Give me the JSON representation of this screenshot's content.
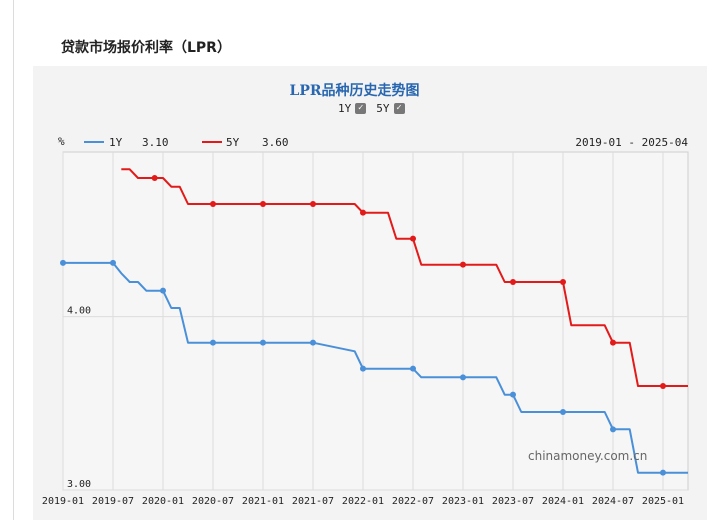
{
  "page": {
    "title": "贷款市场报价利率（LPR）",
    "watermark": "chinamoney.com.cn"
  },
  "toggles": [
    {
      "label": "1Y",
      "checked": true
    },
    {
      "label": "5Y",
      "checked": true
    }
  ],
  "chart_data": {
    "type": "line",
    "title": "LPR品种历史走势图",
    "unit_label": "%",
    "date_range_label": "2019-01 - 2025-04",
    "x_tick_labels": [
      "2019-01",
      "2019-07",
      "2020-01",
      "2020-07",
      "2021-01",
      "2021-07",
      "2022-01",
      "2022-07",
      "2023-01",
      "2023-07",
      "2024-01",
      "2024-07",
      "2025-01"
    ],
    "y_tick_labels": [
      "3.00",
      "4.00"
    ],
    "ylim": [
      3.0,
      4.95
    ],
    "xlim": [
      "2019-01",
      "2025-04"
    ],
    "grid": true,
    "legend_position": "top-left",
    "series": [
      {
        "name": "1Y",
        "legend_value": "3.10",
        "color": "#4a90d9",
        "points": [
          [
            "2019-01",
            4.31
          ],
          [
            "2019-07",
            4.31
          ],
          [
            "2019-08",
            4.25
          ],
          [
            "2019-09",
            4.2
          ],
          [
            "2019-10",
            4.2
          ],
          [
            "2019-11",
            4.15
          ],
          [
            "2019-12",
            4.15
          ],
          [
            "2020-01",
            4.15
          ],
          [
            "2020-02",
            4.05
          ],
          [
            "2020-03",
            4.05
          ],
          [
            "2020-04",
            3.85
          ],
          [
            "2020-07",
            3.85
          ],
          [
            "2021-01",
            3.85
          ],
          [
            "2021-07",
            3.85
          ],
          [
            "2021-12",
            3.8
          ],
          [
            "2022-01",
            3.7
          ],
          [
            "2022-07",
            3.7
          ],
          [
            "2022-08",
            3.65
          ],
          [
            "2023-01",
            3.65
          ],
          [
            "2023-05",
            3.65
          ],
          [
            "2023-06",
            3.55
          ],
          [
            "2023-07",
            3.55
          ],
          [
            "2023-08",
            3.45
          ],
          [
            "2024-01",
            3.45
          ],
          [
            "2024-06",
            3.45
          ],
          [
            "2024-07",
            3.35
          ],
          [
            "2024-08",
            3.35
          ],
          [
            "2024-09",
            3.35
          ],
          [
            "2024-10",
            3.1
          ],
          [
            "2025-01",
            3.1
          ],
          [
            "2025-04",
            3.1
          ]
        ],
        "markers": [
          "2019-01",
          "2019-07",
          "2020-01",
          "2020-07",
          "2021-01",
          "2021-07",
          "2022-01",
          "2022-07",
          "2023-01",
          "2023-07",
          "2024-01",
          "2024-07",
          "2025-01"
        ]
      },
      {
        "name": "5Y",
        "legend_value": "3.60",
        "color": "#e31a1a",
        "points": [
          [
            "2019-08",
            4.85
          ],
          [
            "2019-09",
            4.85
          ],
          [
            "2019-10",
            4.8
          ],
          [
            "2019-11",
            4.8
          ],
          [
            "2019-12",
            4.8
          ],
          [
            "2020-01",
            4.8
          ],
          [
            "2020-02",
            4.75
          ],
          [
            "2020-03",
            4.75
          ],
          [
            "2020-04",
            4.65
          ],
          [
            "2020-07",
            4.65
          ],
          [
            "2021-01",
            4.65
          ],
          [
            "2021-07",
            4.65
          ],
          [
            "2021-12",
            4.65
          ],
          [
            "2022-01",
            4.6
          ],
          [
            "2022-04",
            4.6
          ],
          [
            "2022-05",
            4.45
          ],
          [
            "2022-06",
            4.45
          ],
          [
            "2022-07",
            4.45
          ],
          [
            "2022-08",
            4.3
          ],
          [
            "2023-01",
            4.3
          ],
          [
            "2023-05",
            4.3
          ],
          [
            "2023-06",
            4.2
          ],
          [
            "2023-07",
            4.2
          ],
          [
            "2024-01",
            4.2
          ],
          [
            "2024-02",
            3.95
          ],
          [
            "2024-06",
            3.95
          ],
          [
            "2024-07",
            3.85
          ],
          [
            "2024-08",
            3.85
          ],
          [
            "2024-09",
            3.85
          ],
          [
            "2024-10",
            3.6
          ],
          [
            "2025-01",
            3.6
          ],
          [
            "2025-04",
            3.6
          ]
        ],
        "markers": [
          "2019-12",
          "2020-07",
          "2021-01",
          "2021-07",
          "2022-01",
          "2022-07",
          "2023-01",
          "2023-07",
          "2024-01",
          "2024-07",
          "2025-01"
        ]
      }
    ]
  }
}
